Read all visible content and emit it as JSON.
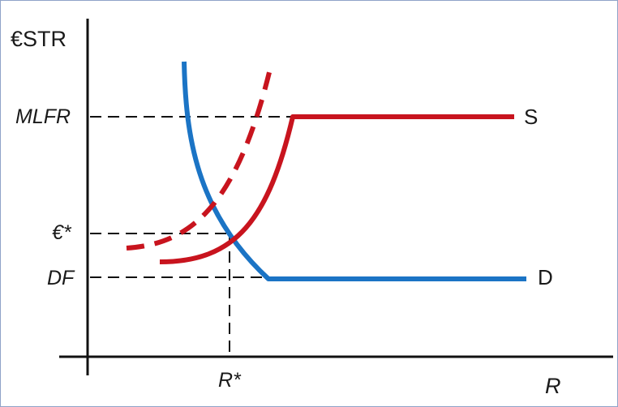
{
  "diagram": {
    "y_axis_label": "€STR",
    "x_axis_label": "R",
    "y_ticks": {
      "upper": "MLFR",
      "middle": "€*",
      "lower": "DF"
    },
    "x_tick": "R*",
    "curves": {
      "supply": {
        "label": "S",
        "color": "#c8141e"
      },
      "demand": {
        "label": "D",
        "color": "#1b74c5"
      }
    },
    "axis_color": "#111111"
  }
}
